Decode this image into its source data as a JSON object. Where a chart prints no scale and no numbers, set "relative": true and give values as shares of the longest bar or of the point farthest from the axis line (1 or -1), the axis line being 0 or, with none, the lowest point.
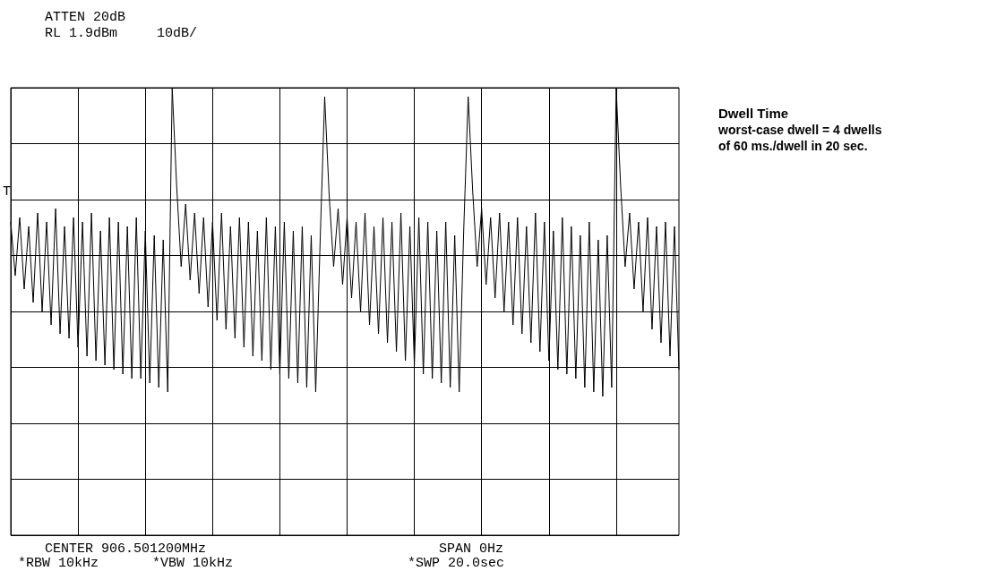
{
  "chart_data": {
    "type": "line",
    "title": "Dwell Time",
    "subtitle": "worst-case dwell = 4 dwells\nof 60 ms./dwell in 20 sec.",
    "relative": true,
    "grid": true,
    "line_style": "solid",
    "annotations": [
      "ATTEN 20dB",
      "RL 1.9dBm",
      "10dB/",
      "T",
      "CENTER 906.501200MHz",
      "SPAN 0Hz",
      "*RBW 10kHz",
      "*VBW 10kHz",
      "*SWP 20.0sec"
    ],
    "categories": [
      null,
      null,
      null,
      null,
      null,
      null,
      null,
      null,
      null,
      null,
      null,
      null,
      null,
      null,
      null,
      null,
      null,
      null,
      null,
      null,
      null,
      null,
      null,
      null,
      null,
      null,
      null,
      null,
      null,
      null,
      null,
      null,
      null,
      null,
      null,
      null,
      null,
      null,
      null,
      null,
      null,
      null,
      null,
      null,
      null,
      null,
      null,
      null,
      null,
      null,
      null,
      null,
      null,
      null,
      null,
      null,
      null,
      null,
      null,
      null,
      null,
      null,
      null,
      null,
      null,
      null,
      null,
      null,
      null,
      null,
      null,
      null,
      null,
      null,
      null,
      null,
      null,
      null,
      null,
      null,
      null,
      null,
      null,
      null,
      null,
      null,
      null,
      null,
      null,
      null,
      null,
      null,
      null,
      null,
      null,
      null,
      null,
      null,
      null,
      null,
      null,
      null,
      null,
      null,
      null,
      null,
      null,
      null,
      null,
      null,
      null,
      null,
      null,
      null,
      null,
      null,
      null,
      null,
      null,
      null,
      null,
      null,
      null,
      null,
      null,
      null,
      null,
      null,
      null,
      null,
      null,
      null,
      null,
      null,
      null,
      null,
      null,
      null,
      null,
      null,
      null,
      null,
      null,
      null,
      null,
      null,
      null,
      null,
      null,
      null
    ],
    "series": [
      {
        "color": "#000000",
        "values": [
          0.7,
          0.58,
          0.71,
          0.55,
          0.69,
          0.52,
          0.72,
          0.5,
          0.7,
          0.47,
          0.73,
          0.45,
          0.69,
          0.44,
          0.71,
          0.42,
          0.7,
          0.4,
          0.72,
          0.39,
          0.68,
          0.38,
          0.71,
          0.37,
          0.7,
          0.36,
          0.69,
          0.35,
          0.71,
          0.35,
          0.68,
          0.34,
          0.67,
          0.33,
          0.66,
          0.32,
          1.0,
          0.78,
          0.6,
          0.74,
          0.57,
          0.72,
          0.54,
          0.71,
          0.51,
          0.7,
          0.48,
          0.72,
          0.46,
          0.69,
          0.44,
          0.71,
          0.42,
          0.7,
          0.4,
          0.68,
          0.39,
          0.71,
          0.37,
          0.69,
          0.36,
          0.7,
          0.35,
          0.68,
          0.34,
          0.69,
          0.33,
          0.67,
          0.32,
          0.66,
          0.98,
          0.76,
          0.6,
          0.73,
          0.56,
          0.71,
          0.53,
          0.7,
          0.5,
          0.72,
          0.47,
          0.69,
          0.45,
          0.71,
          0.43,
          0.7,
          0.41,
          0.72,
          0.39,
          0.69,
          0.38,
          0.71,
          0.36,
          0.7,
          0.35,
          0.68,
          0.34,
          0.7,
          0.33,
          0.67,
          0.32,
          0.68,
          0.98,
          0.77,
          0.6,
          0.73,
          0.56,
          0.71,
          0.53,
          0.72,
          0.5,
          0.7,
          0.47,
          0.71,
          0.45,
          0.69,
          0.43,
          0.72,
          0.41,
          0.7,
          0.39,
          0.68,
          0.37,
          0.71,
          0.36,
          0.69,
          0.35,
          0.67,
          0.33,
          0.7,
          0.32,
          0.66,
          0.31,
          0.67,
          0.33,
          1.0,
          0.78,
          0.6,
          0.72,
          0.55,
          0.7,
          0.5,
          0.71,
          0.46,
          0.69,
          0.43,
          0.7,
          0.4,
          0.69,
          0.37
        ]
      }
    ]
  }
}
